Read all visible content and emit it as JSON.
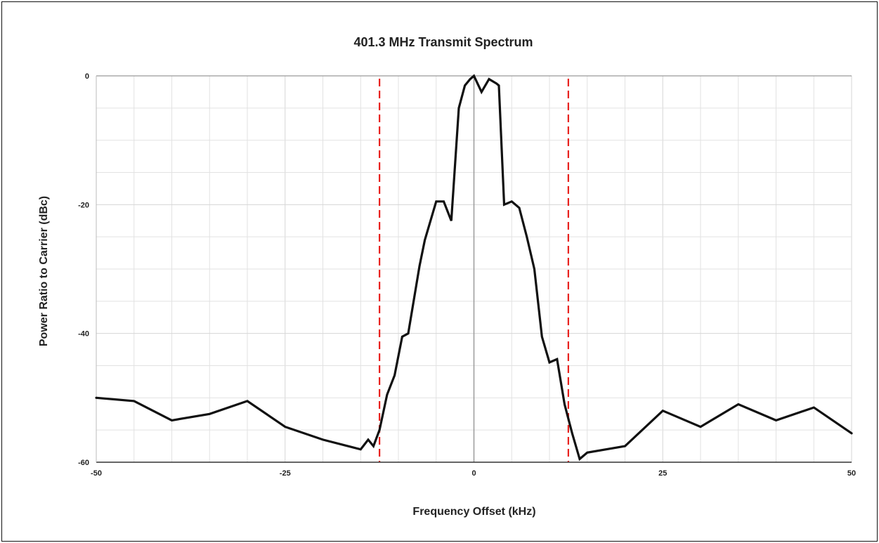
{
  "chart_data": {
    "type": "line",
    "title": "401.3 MHz Transmit Spectrum",
    "xlabel": "Frequency Offset (kHz)",
    "ylabel": "Power Ratio to Carrier (dBc)",
    "xlim": [
      -50,
      50
    ],
    "ylim": [
      -60,
      0
    ],
    "x_ticks": [
      -50,
      -25,
      0,
      25,
      50
    ],
    "y_ticks": [
      0,
      -20,
      -40,
      -60
    ],
    "x_tick_labels": [
      "-50",
      "-25",
      "0",
      "25",
      "50"
    ],
    "y_tick_labels": [
      "0",
      "-20",
      "-40",
      "-60"
    ],
    "grid": true,
    "legend": "none",
    "colors": {
      "line": "#111111",
      "limit": "#e8201c",
      "grid": "#e2e2e2",
      "zero_line": "#9a9a9a"
    },
    "series": [
      {
        "x": [
          -50,
          -45,
          -40,
          -35,
          -30,
          -25,
          -20,
          -15,
          -14,
          -13.3,
          -12.5,
          -11.5,
          -10.5,
          -9.5,
          -8.7,
          -7.2,
          -6.5,
          -5,
          -4,
          -3,
          -2,
          -1.2,
          -0.5,
          0,
          1,
          2,
          3,
          3.3,
          4,
          5,
          6,
          7,
          8,
          9,
          10,
          11,
          12,
          13,
          14,
          15,
          20,
          25,
          30,
          35,
          40,
          45,
          50
        ],
        "y": [
          -50,
          -50.5,
          -53.5,
          -52.5,
          -50.5,
          -54.5,
          -56.5,
          -58,
          -56.5,
          -57.5,
          -55,
          -49.5,
          -46.5,
          -40.5,
          -40,
          -29.5,
          -25.5,
          -19.5,
          -19.5,
          -22.5,
          -5,
          -1.5,
          -0.5,
          0,
          -2.5,
          -0.5,
          -1.2,
          -1.5,
          -20,
          -19.5,
          -20.5,
          -25,
          -30,
          -40.5,
          -44.5,
          -44,
          -51,
          -55.5,
          -59.5,
          -58.5,
          -57.5,
          -52,
          -54.5,
          -51,
          -53.5,
          -51.5,
          -55.5
        ]
      }
    ],
    "limit_lines_x": [
      -12.5,
      12.5
    ]
  }
}
